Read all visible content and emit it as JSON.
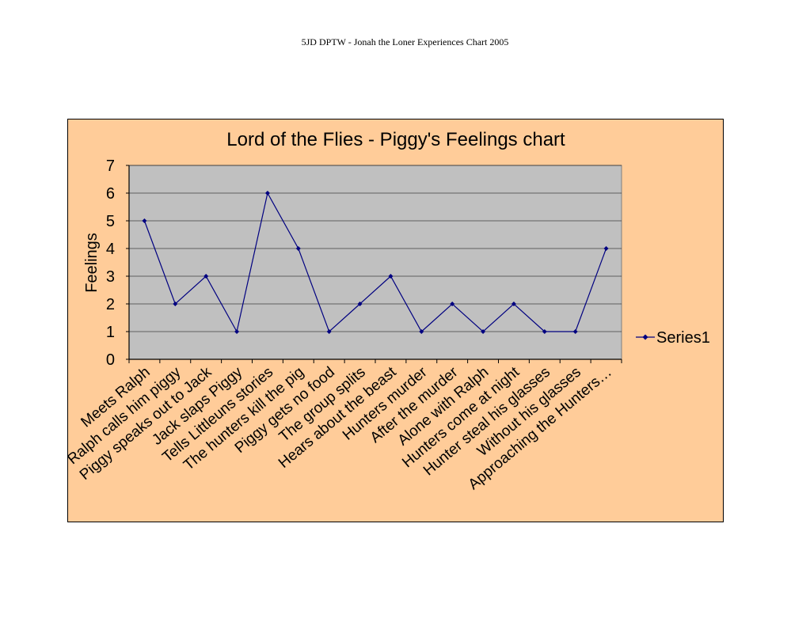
{
  "page": {
    "header": "5JD DPTW - Jonah the Loner Experiences Chart 2005"
  },
  "chart_data": {
    "type": "line",
    "title": "Lord of the Flies - Piggy's  Feelings chart",
    "xlabel": "",
    "ylabel": "Feelings",
    "ylim": [
      0,
      7
    ],
    "yticks": [
      "0",
      "1",
      "2",
      "3",
      "4",
      "5",
      "6",
      "7"
    ],
    "grid": true,
    "legend_position": "right",
    "categories": [
      "Meets Ralph",
      "Ralph calls him piggy",
      "Piggy speaks out to Jack",
      "Jack slaps Piggy",
      "Tells Littleuns stories",
      "The hunters kill the pig",
      "Piggy gets no food",
      "The group splits",
      "Hears about the beast",
      "Hunters murder",
      "After the murder",
      "Alone with Ralph",
      "Hunters come at night",
      "Hunter steal his glasses",
      "Without his glasses",
      "Approaching the Hunters…"
    ],
    "series": [
      {
        "name": "Series1",
        "values": [
          5,
          2,
          3,
          1,
          6,
          4,
          1,
          2,
          3,
          1,
          2,
          1,
          2,
          1,
          1,
          4
        ]
      }
    ],
    "colors": {
      "chart_area": "#ffcc99",
      "plot_area": "#c0c0c0",
      "series_line": "#000080",
      "gridline": "#000000"
    }
  }
}
